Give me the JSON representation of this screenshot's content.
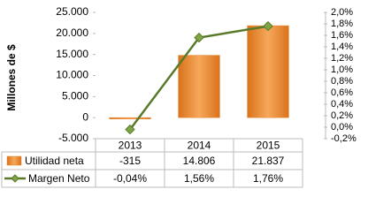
{
  "chart_data": {
    "type": "bar-line-table",
    "y_label": "Millones de $",
    "categories": [
      "2013",
      "2014",
      "2015"
    ],
    "series": [
      {
        "name": "Utilidad neta",
        "type": "bar",
        "color": "#e8842a",
        "values": [
          -315,
          14806,
          21837
        ],
        "value_labels": [
          "-315",
          "14.806",
          "21.837"
        ]
      },
      {
        "name": "Margen Neto",
        "type": "line",
        "axis": "y2",
        "color": "#5a7a2a",
        "values": [
          -0.04,
          1.56,
          1.76
        ],
        "value_labels": [
          "-0,04%",
          "1,56%",
          "1,76%"
        ]
      }
    ],
    "ylim": [
      -5000,
      25000
    ],
    "yticks": [
      {
        "value": 25000,
        "label": "25.000"
      },
      {
        "value": 20000,
        "label": "20.000"
      },
      {
        "value": 15000,
        "label": "15.000"
      },
      {
        "value": 10000,
        "label": "10.000"
      },
      {
        "value": 5000,
        "label": "5.000"
      },
      0,
      {
        "value": -5000,
        "label": "-5.000"
      }
    ],
    "y2lim": [
      -0.2,
      2.0
    ],
    "y2ticks": [
      {
        "value": 2.0,
        "label": "2,0%"
      },
      {
        "value": 1.8,
        "label": "1,8%"
      },
      {
        "value": 1.6,
        "label": "1,6%"
      },
      {
        "value": 1.4,
        "label": "1,4%"
      },
      {
        "value": 1.2,
        "label": "1,2%"
      },
      {
        "value": 1.0,
        "label": "1,0%"
      },
      {
        "value": 0.8,
        "label": "0,8%"
      },
      {
        "value": 0.6,
        "label": "0,6%"
      },
      {
        "value": 0.4,
        "label": "0,4%"
      },
      {
        "value": 0.2,
        "label": "0,2%"
      },
      {
        "value": 0.0,
        "label": "0,0%"
      },
      {
        "value": -0.2,
        "label": "-0,2%"
      }
    ],
    "grid": false
  }
}
